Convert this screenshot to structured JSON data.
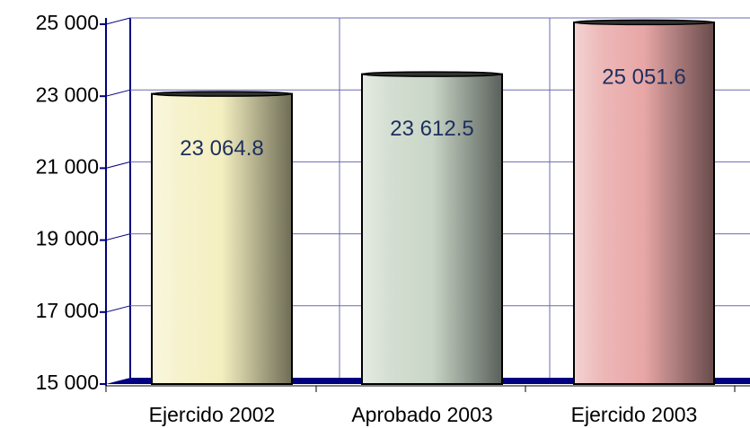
{
  "chart_data": {
    "type": "bar",
    "categories": [
      "Ejercido 2002",
      "Aprobado 2003",
      "Ejercido 2003"
    ],
    "values": [
      23064.8,
      23612.5,
      25051.6
    ],
    "value_labels": [
      "23 064.8",
      "23 612.5",
      "25 051.6"
    ],
    "colors": [
      "#f4efc0",
      "#c9d6c7",
      "#e8a6a6"
    ],
    "ylim": [
      15000,
      25000
    ],
    "yticks": [
      {
        "value": 15000,
        "label": "15 000"
      },
      {
        "value": 17000,
        "label": "17 000"
      },
      {
        "value": 19000,
        "label": "19 000"
      },
      {
        "value": 21000,
        "label": "21 000"
      },
      {
        "value": 23000,
        "label": "23 000"
      },
      {
        "value": 25000,
        "label": "25 000"
      }
    ],
    "grid": true
  }
}
